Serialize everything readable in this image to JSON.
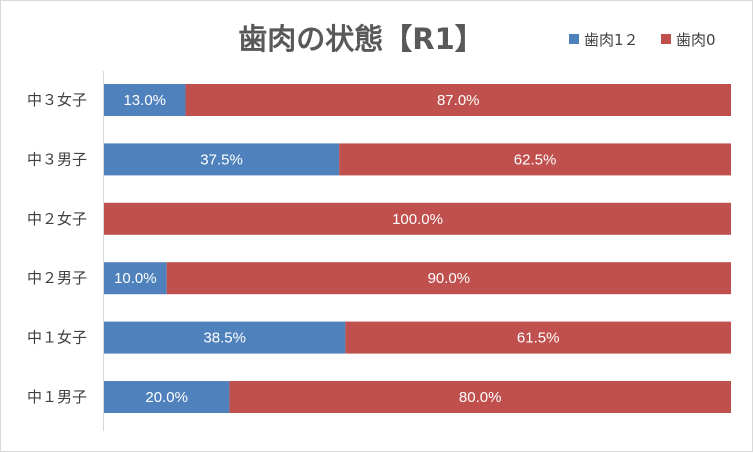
{
  "chart_data": {
    "type": "bar",
    "orientation": "horizontal",
    "stacking": "percent",
    "title": "歯肉の状態【R1】",
    "categories": [
      "中３女子",
      "中３男子",
      "中２女子",
      "中２男子",
      "中１女子",
      "中１男子"
    ],
    "series": [
      {
        "name": "歯肉1２",
        "color": "#4f81bd",
        "values": [
          13.0,
          37.5,
          0.0,
          10.0,
          38.5,
          20.0
        ],
        "labels": [
          "13.0%",
          "37.5%",
          "",
          "10.0%",
          "38.5%",
          "20.0%"
        ]
      },
      {
        "name": "歯肉0",
        "color": "#c0504d",
        "values": [
          87.0,
          62.5,
          100.0,
          90.0,
          61.5,
          80.0
        ],
        "labels": [
          "87.0%",
          "62.5%",
          "100.0%",
          "90.0%",
          "61.5%",
          "80.0%"
        ]
      }
    ],
    "xlim": [
      0,
      100
    ],
    "legend_position": "top-right",
    "grid": false
  }
}
